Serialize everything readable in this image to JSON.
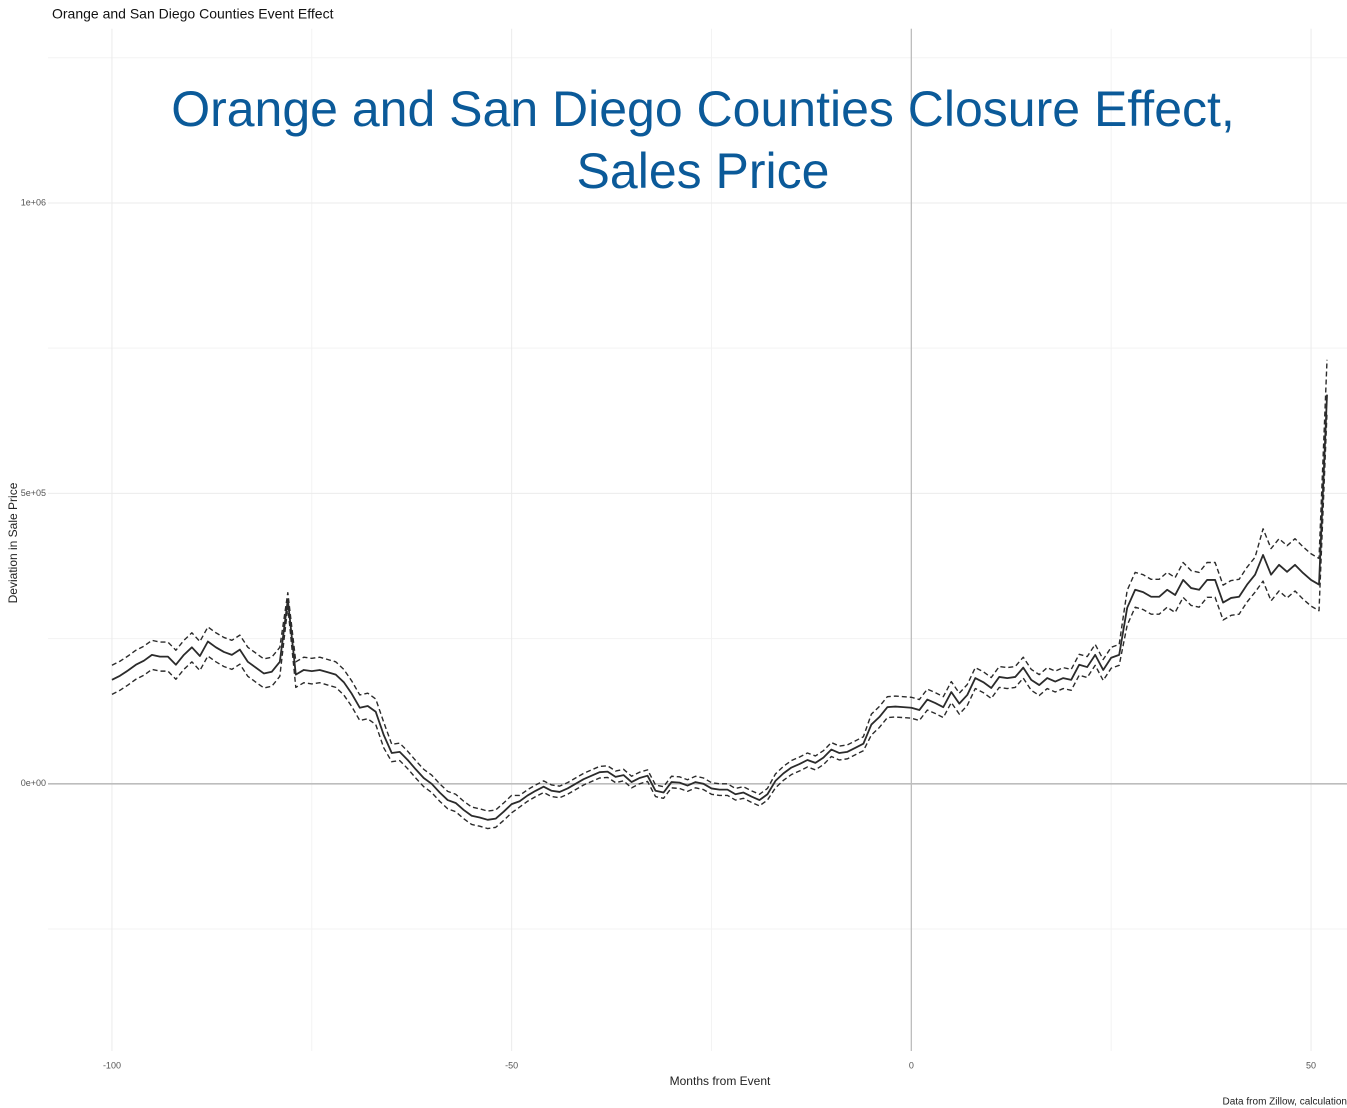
{
  "chart_data": {
    "type": "line",
    "title": "Orange and San Diego Counties Event Effect",
    "overlay_title": [
      "Orange and San Diego Counties Closure Effect,",
      "Sales Price"
    ],
    "x_label": "Months from Event",
    "y_label": "Deviation in Sale Price",
    "caption": "Data from Zillow, calculation",
    "xlim": [
      -108,
      54.5
    ],
    "ylim": [
      -460000,
      1300000
    ],
    "xticks": [
      -100,
      -50,
      0,
      50
    ],
    "yticks": [
      {
        "value": 0,
        "label": "0e+00"
      },
      {
        "value": 500000,
        "label": "5e+05"
      },
      {
        "value": 1000000,
        "label": "1e+06"
      }
    ],
    "x_minor_grid": [
      -75,
      -25,
      25
    ],
    "y_minor_grid": [
      -250000,
      250000,
      750000,
      1250000
    ],
    "grid": true,
    "reference_lines": {
      "x": 0,
      "y": 0
    },
    "x": [
      -100,
      -99,
      -98,
      -97,
      -96,
      -95,
      -94,
      -93,
      -92,
      -91,
      -90,
      -89,
      -88,
      -87,
      -86,
      -85,
      -84,
      -83,
      -82,
      -81,
      -80,
      -79,
      -78,
      -77,
      -76,
      -75,
      -74,
      -73,
      -72,
      -71,
      -70,
      -69,
      -68,
      -67,
      -66,
      -65,
      -64,
      -63,
      -62,
      -61,
      -60,
      -59,
      -58,
      -57,
      -56,
      -55,
      -54,
      -53,
      -52,
      -51,
      -50,
      -49,
      -48,
      -47,
      -46,
      -45,
      -44,
      -43,
      -42,
      -41,
      -40,
      -39,
      -38,
      -37,
      -36,
      -35,
      -34,
      -33,
      -32,
      -31,
      -30,
      -29,
      -28,
      -27,
      -26,
      -25,
      -24,
      -23,
      -22,
      -21,
      -20,
      -19,
      -18,
      -17,
      -16,
      -15,
      -14,
      -13,
      -12,
      -11,
      -10,
      -9,
      -8,
      -7,
      -6,
      -5,
      -4,
      -3,
      -2,
      -1,
      0,
      1,
      2,
      3,
      4,
      5,
      6,
      7,
      8,
      9,
      10,
      11,
      12,
      13,
      14,
      15,
      16,
      17,
      18,
      19,
      20,
      21,
      22,
      23,
      24,
      25,
      26,
      27,
      28,
      29,
      30,
      31,
      32,
      33,
      34,
      35,
      36,
      37,
      38,
      39,
      40,
      41,
      42,
      43,
      44,
      45,
      46,
      47,
      48,
      49,
      50,
      51,
      52
    ],
    "series": [
      {
        "color": "#2b2b2b",
        "dashed": false,
        "values": [
          179000,
          186000,
          195000,
          205000,
          212000,
          222000,
          219000,
          219000,
          205000,
          222000,
          235000,
          220000,
          245000,
          235000,
          227000,
          222000,
          231000,
          210000,
          200000,
          190000,
          193000,
          210000,
          317000,
          188000,
          196000,
          194000,
          196000,
          192000,
          188000,
          175000,
          155000,
          131000,
          134000,
          124000,
          84000,
          53000,
          55000,
          41000,
          25000,
          10000,
          0,
          -15000,
          -28000,
          -33000,
          -45000,
          -55000,
          -58000,
          -62000,
          -60000,
          -48000,
          -35000,
          -30000,
          -20000,
          -12000,
          -5000,
          -12000,
          -14000,
          -8000,
          0,
          8000,
          14000,
          20000,
          21000,
          12000,
          15000,
          3000,
          10000,
          14000,
          -12000,
          -15000,
          3000,
          2000,
          -3000,
          3000,
          0,
          -8000,
          -10000,
          -10000,
          -18000,
          -15000,
          -22000,
          -28000,
          -18000,
          5000,
          18000,
          28000,
          34000,
          41000,
          36000,
          45000,
          59000,
          53000,
          55000,
          62000,
          69000,
          102000,
          115000,
          132000,
          133000,
          132000,
          131000,
          127000,
          145000,
          139000,
          132000,
          158000,
          138000,
          153000,
          182000,
          175000,
          165000,
          184000,
          182000,
          184000,
          200000,
          179000,
          170000,
          182000,
          176000,
          182000,
          179000,
          205000,
          201000,
          222000,
          196000,
          217000,
          222000,
          303000,
          334000,
          330000,
          322000,
          322000,
          334000,
          325000,
          351000,
          337000,
          334000,
          351000,
          351000,
          312000,
          320000,
          322000,
          343000,
          360000,
          394000,
          360000,
          377000,
          365000,
          377000,
          363000,
          351000,
          343000,
          670000
        ]
      },
      {
        "color": "#2b2b2b",
        "dashed": true,
        "values": [
          204000,
          211000,
          220000,
          230000,
          237000,
          247000,
          244000,
          244000,
          230000,
          247000,
          260000,
          245000,
          270000,
          260000,
          252000,
          247000,
          256000,
          235000,
          225000,
          215000,
          218000,
          235000,
          329000,
          210000,
          218000,
          216000,
          218000,
          214000,
          210000,
          197000,
          177000,
          153000,
          156000,
          146000,
          106000,
          68000,
          70000,
          56000,
          40000,
          25000,
          15000,
          0,
          -13000,
          -18000,
          -30000,
          -40000,
          -43000,
          -47000,
          -45000,
          -33000,
          -20000,
          -20000,
          -10000,
          -2000,
          5000,
          -2000,
          -4000,
          2000,
          10000,
          18000,
          24000,
          30000,
          31000,
          22000,
          25000,
          13000,
          20000,
          24000,
          -2000,
          -5000,
          13000,
          12000,
          7000,
          13000,
          10000,
          2000,
          0,
          0,
          -8000,
          -5000,
          -12000,
          -18000,
          -8000,
          17000,
          30000,
          40000,
          46000,
          53000,
          48000,
          57000,
          71000,
          65000,
          67000,
          74000,
          81000,
          120000,
          133000,
          150000,
          151000,
          150000,
          149000,
          145000,
          163000,
          157000,
          150000,
          176000,
          156000,
          171000,
          200000,
          193000,
          183000,
          202000,
          200000,
          202000,
          218000,
          197000,
          188000,
          200000,
          194000,
          200000,
          197000,
          223000,
          219000,
          240000,
          214000,
          235000,
          240000,
          333000,
          364000,
          360000,
          352000,
          352000,
          364000,
          355000,
          381000,
          367000,
          364000,
          381000,
          381000,
          342000,
          350000,
          352000,
          373000,
          390000,
          439000,
          405000,
          422000,
          410000,
          422000,
          408000,
          396000,
          388000,
          730000
        ]
      },
      {
        "color": "#2b2b2b",
        "dashed": true,
        "values": [
          154000,
          161000,
          170000,
          180000,
          187000,
          197000,
          194000,
          194000,
          180000,
          197000,
          210000,
          195000,
          220000,
          210000,
          202000,
          197000,
          206000,
          185000,
          175000,
          165000,
          168000,
          185000,
          305000,
          166000,
          174000,
          172000,
          174000,
          170000,
          166000,
          153000,
          133000,
          109000,
          112000,
          102000,
          62000,
          38000,
          40000,
          26000,
          10000,
          -5000,
          -15000,
          -30000,
          -43000,
          -48000,
          -60000,
          -70000,
          -73000,
          -77000,
          -75000,
          -63000,
          -50000,
          -40000,
          -30000,
          -22000,
          -15000,
          -22000,
          -24000,
          -18000,
          -10000,
          -2000,
          4000,
          10000,
          11000,
          2000,
          5000,
          -7000,
          0,
          4000,
          -22000,
          -25000,
          -7000,
          -8000,
          -13000,
          -7000,
          -10000,
          -18000,
          -20000,
          -20000,
          -28000,
          -25000,
          -32000,
          -38000,
          -28000,
          -7000,
          6000,
          16000,
          22000,
          29000,
          24000,
          33000,
          47000,
          41000,
          43000,
          50000,
          57000,
          84000,
          97000,
          114000,
          115000,
          114000,
          113000,
          109000,
          127000,
          121000,
          114000,
          140000,
          120000,
          135000,
          164000,
          157000,
          147000,
          166000,
          164000,
          166000,
          182000,
          161000,
          152000,
          164000,
          158000,
          164000,
          161000,
          187000,
          183000,
          204000,
          178000,
          199000,
          204000,
          273000,
          304000,
          300000,
          292000,
          292000,
          304000,
          295000,
          321000,
          307000,
          304000,
          321000,
          321000,
          282000,
          290000,
          292000,
          313000,
          330000,
          349000,
          315000,
          332000,
          320000,
          332000,
          318000,
          306000,
          298000,
          640000
        ]
      }
    ]
  }
}
